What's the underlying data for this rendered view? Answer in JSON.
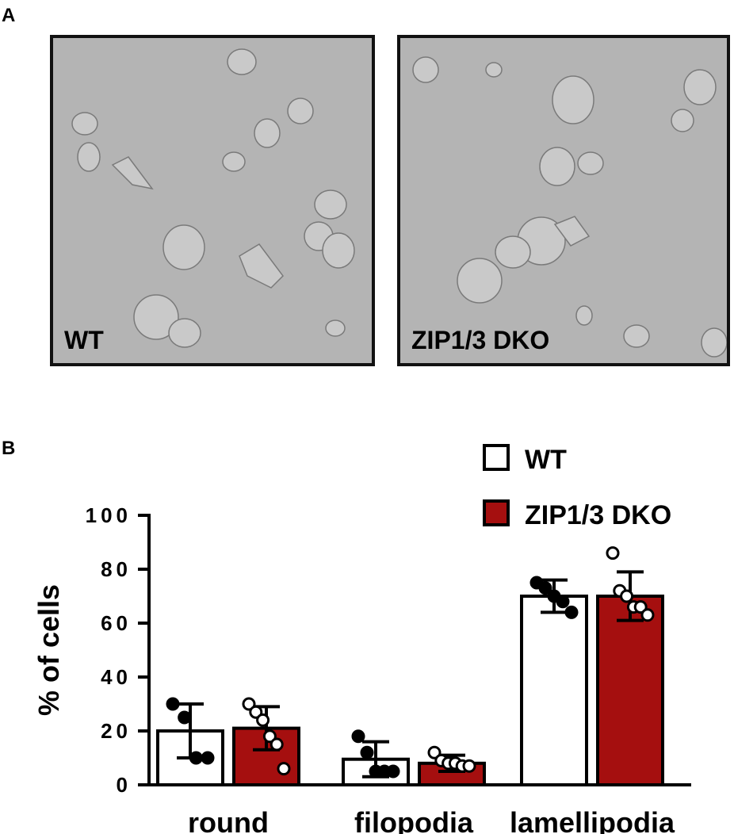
{
  "panels": {
    "a": {
      "letter": "A",
      "images": [
        {
          "label": "WT"
        },
        {
          "label": "ZIP1/3 DKO"
        }
      ]
    },
    "b": {
      "letter": "B"
    }
  },
  "colors": {
    "wt": "#ffffff",
    "dko": "#a50f0f",
    "stroke": "#000000"
  },
  "chart_data": {
    "type": "bar",
    "title": "",
    "xlabel": "",
    "ylabel": "% of cells",
    "ylim": [
      0,
      100
    ],
    "yticks": [
      "0",
      "20",
      "40",
      "60",
      "80",
      "100"
    ],
    "legend_position": "top-right",
    "categories": [
      "round",
      "filopodia",
      "lamellipodia"
    ],
    "series": [
      {
        "name": "WT",
        "values": [
          20,
          9.5,
          70
        ],
        "sd": [
          10,
          6.5,
          6
        ],
        "points": [
          [
            30,
            25,
            10,
            10
          ],
          [
            18,
            12,
            5,
            5,
            5
          ],
          [
            75,
            73,
            70,
            68,
            64
          ]
        ]
      },
      {
        "name": "ZIP1/3 DKO",
        "values": [
          21,
          8,
          70
        ],
        "sd": [
          8,
          3,
          9
        ],
        "points": [
          [
            30,
            27,
            24,
            18,
            15,
            6
          ],
          [
            12,
            9,
            8,
            8,
            7,
            7
          ],
          [
            86,
            72,
            70,
            66,
            66,
            63
          ]
        ]
      }
    ]
  }
}
